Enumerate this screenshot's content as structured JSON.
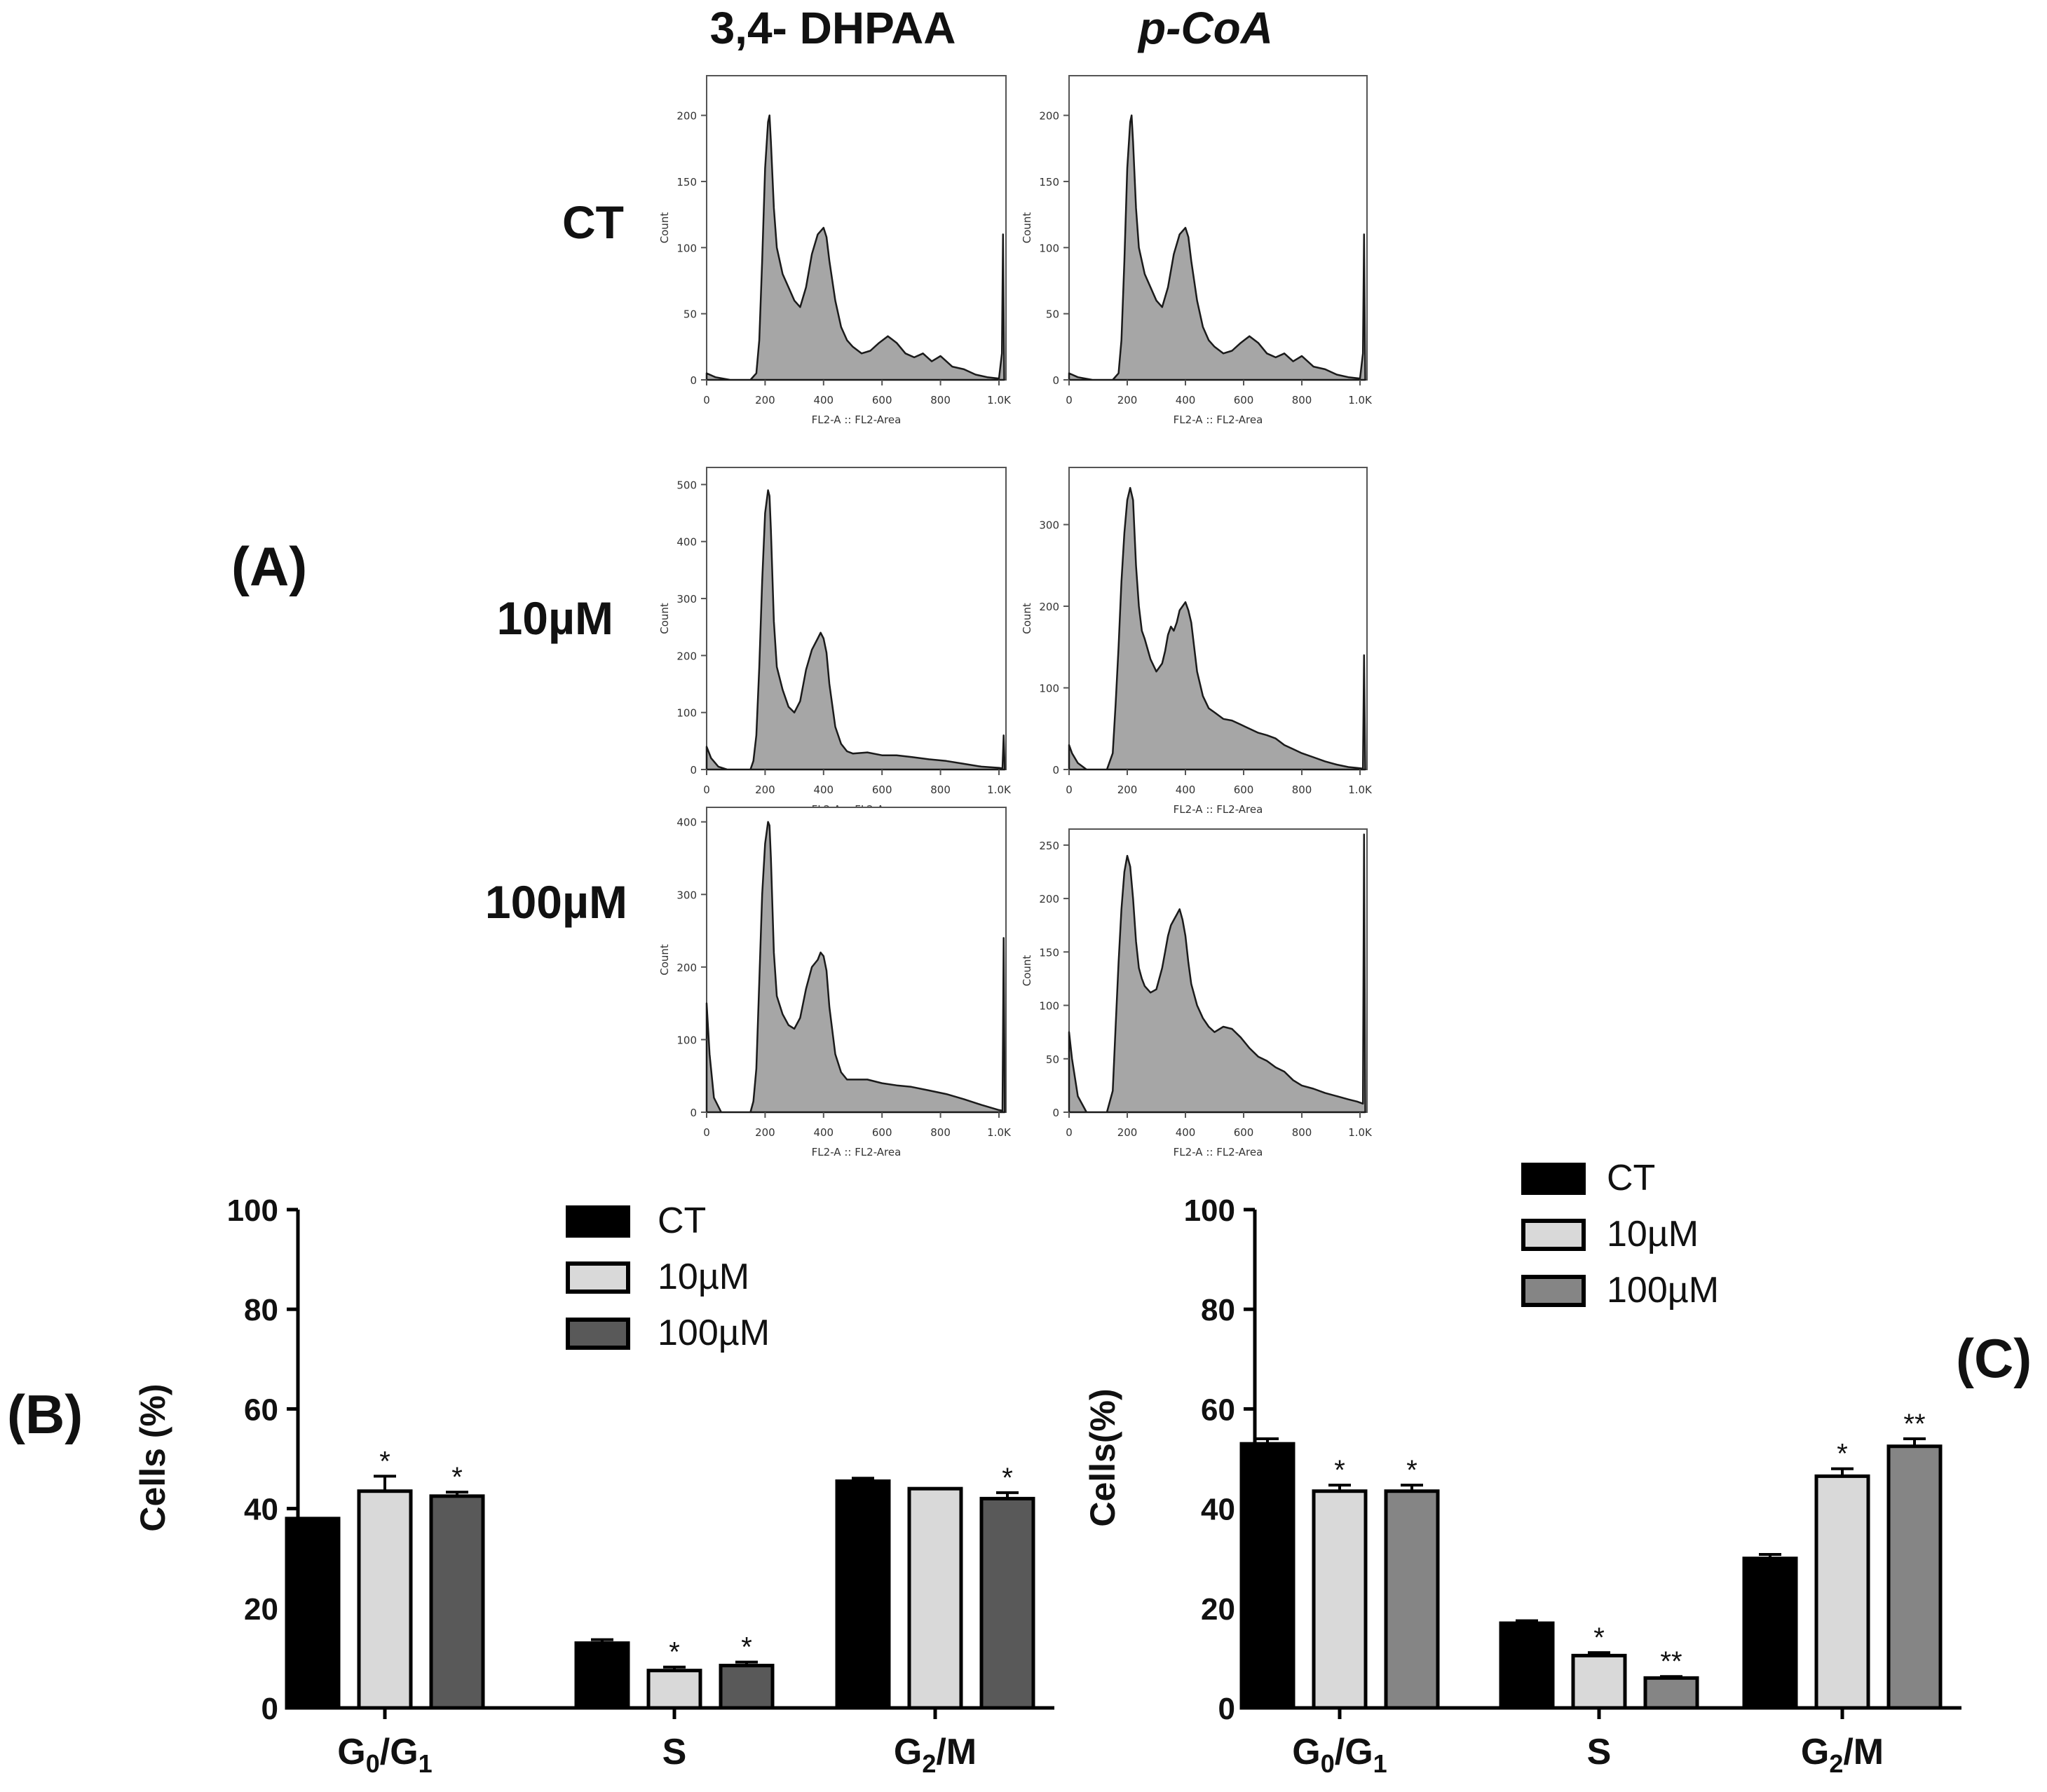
{
  "panel_a": {
    "label": "(A)",
    "col_titles": [
      "3,4- DHPAA",
      "p-CoA"
    ],
    "row_labels": [
      "CT",
      "10µM",
      "100µM"
    ],
    "x_ticks": [
      "0",
      "200",
      "400",
      "600",
      "800",
      "1.0K"
    ],
    "x_axis_label": "FL2-A :: FL2-Area",
    "y_axis_label": "Count"
  },
  "panel_b": {
    "label": "(B)"
  },
  "panel_c": {
    "label": "(C)"
  },
  "chart_data": [
    {
      "id": "A-dhpaa-ct",
      "type": "area",
      "title": "3,4- DHPAA",
      "row": "CT",
      "xlabel": "FL2-A :: FL2-Area",
      "ylabel": "Count",
      "xlim": [
        0,
        1024
      ],
      "ylim": [
        0,
        230
      ],
      "yticks": [
        0,
        50,
        100,
        150,
        200
      ],
      "x": [
        0,
        30,
        80,
        150,
        170,
        180,
        190,
        200,
        210,
        215,
        220,
        230,
        240,
        260,
        280,
        300,
        320,
        340,
        360,
        380,
        400,
        410,
        420,
        440,
        460,
        480,
        500,
        530,
        560,
        590,
        620,
        650,
        680,
        710,
        740,
        770,
        800,
        840,
        880,
        920,
        960,
        1000,
        1010,
        1014,
        1018
      ],
      "y": [
        5,
        2,
        0,
        0,
        5,
        30,
        90,
        160,
        195,
        200,
        180,
        130,
        100,
        80,
        70,
        60,
        55,
        70,
        95,
        110,
        115,
        108,
        90,
        60,
        40,
        30,
        25,
        20,
        22,
        28,
        33,
        28,
        20,
        17,
        20,
        14,
        18,
        10,
        8,
        4,
        2,
        1,
        20,
        110,
        0
      ]
    },
    {
      "id": "A-pcoa-ct",
      "type": "area",
      "title": "p-CoA",
      "row": "CT",
      "xlabel": "FL2-A :: FL2-Area",
      "ylabel": "Count",
      "xlim": [
        0,
        1024
      ],
      "ylim": [
        0,
        230
      ],
      "yticks": [
        0,
        50,
        100,
        150,
        200
      ],
      "x": [
        0,
        30,
        80,
        150,
        170,
        180,
        190,
        200,
        210,
        215,
        220,
        230,
        240,
        260,
        280,
        300,
        320,
        340,
        360,
        380,
        400,
        410,
        420,
        440,
        460,
        480,
        500,
        530,
        560,
        590,
        620,
        650,
        680,
        710,
        740,
        770,
        800,
        840,
        880,
        920,
        960,
        1000,
        1010,
        1014,
        1018
      ],
      "y": [
        5,
        2,
        0,
        0,
        5,
        30,
        90,
        160,
        195,
        200,
        180,
        130,
        100,
        80,
        70,
        60,
        55,
        70,
        95,
        110,
        115,
        108,
        90,
        60,
        40,
        30,
        25,
        20,
        22,
        28,
        33,
        28,
        20,
        17,
        20,
        14,
        18,
        10,
        8,
        4,
        2,
        1,
        20,
        110,
        0
      ]
    },
    {
      "id": "A-dhpaa-10",
      "type": "area",
      "title": "3,4- DHPAA",
      "row": "10µM",
      "xlabel": "FL2-A :: FL2-Area",
      "ylabel": "Count",
      "xlim": [
        0,
        1024
      ],
      "ylim": [
        0,
        530
      ],
      "yticks": [
        0,
        100,
        200,
        300,
        400,
        500
      ],
      "x": [
        0,
        15,
        40,
        70,
        150,
        160,
        170,
        180,
        190,
        200,
        210,
        215,
        220,
        230,
        240,
        260,
        280,
        300,
        320,
        340,
        360,
        380,
        390,
        400,
        410,
        420,
        440,
        460,
        480,
        500,
        550,
        600,
        650,
        700,
        760,
        820,
        880,
        940,
        1000,
        1012,
        1016,
        1020
      ],
      "y": [
        40,
        20,
        5,
        0,
        0,
        15,
        60,
        180,
        330,
        450,
        490,
        480,
        420,
        260,
        180,
        140,
        110,
        100,
        120,
        175,
        210,
        230,
        240,
        230,
        205,
        150,
        75,
        45,
        32,
        28,
        30,
        25,
        25,
        22,
        18,
        15,
        10,
        5,
        3,
        2,
        60,
        0
      ]
    },
    {
      "id": "A-pcoa-10",
      "type": "area",
      "title": "p-CoA",
      "row": "10µM",
      "xlabel": "FL2-A :: FL2-Area",
      "ylabel": "Count",
      "xlim": [
        0,
        1024
      ],
      "ylim": [
        0,
        370
      ],
      "yticks": [
        0,
        100,
        200,
        300
      ],
      "x": [
        0,
        10,
        30,
        60,
        130,
        150,
        160,
        170,
        180,
        190,
        200,
        210,
        220,
        230,
        240,
        250,
        260,
        280,
        300,
        320,
        330,
        340,
        350,
        360,
        370,
        380,
        390,
        400,
        410,
        420,
        440,
        460,
        480,
        500,
        530,
        560,
        590,
        620,
        650,
        680,
        710,
        740,
        770,
        800,
        840,
        880,
        920,
        960,
        990,
        1010,
        1014,
        1018
      ],
      "y": [
        30,
        20,
        8,
        0,
        0,
        20,
        80,
        150,
        230,
        290,
        330,
        345,
        330,
        250,
        200,
        170,
        160,
        135,
        120,
        130,
        145,
        165,
        175,
        170,
        180,
        195,
        200,
        205,
        195,
        180,
        120,
        90,
        75,
        70,
        62,
        60,
        55,
        50,
        45,
        42,
        38,
        30,
        25,
        20,
        15,
        10,
        6,
        3,
        2,
        1,
        140,
        0
      ]
    },
    {
      "id": "A-dhpaa-100",
      "type": "area",
      "title": "3,4- DHPAA",
      "row": "100µM",
      "xlabel": "FL2-A :: FL2-Area",
      "ylabel": "Count",
      "xlim": [
        0,
        1024
      ],
      "ylim": [
        0,
        420
      ],
      "yticks": [
        0,
        100,
        200,
        300,
        400
      ],
      "x": [
        0,
        10,
        25,
        50,
        150,
        160,
        170,
        180,
        190,
        200,
        210,
        215,
        220,
        230,
        240,
        260,
        280,
        300,
        320,
        340,
        360,
        380,
        390,
        400,
        410,
        420,
        440,
        460,
        480,
        500,
        550,
        600,
        650,
        700,
        760,
        820,
        880,
        940,
        1000,
        1012,
        1016,
        1020
      ],
      "y": [
        150,
        80,
        20,
        0,
        0,
        15,
        60,
        180,
        300,
        370,
        400,
        395,
        350,
        220,
        160,
        135,
        120,
        115,
        130,
        170,
        200,
        210,
        220,
        215,
        195,
        145,
        80,
        55,
        45,
        45,
        45,
        40,
        37,
        35,
        30,
        25,
        18,
        10,
        3,
        2,
        240,
        0
      ]
    },
    {
      "id": "A-pcoa-100",
      "type": "area",
      "title": "p-CoA",
      "row": "100µM",
      "xlabel": "FL2-A :: FL2-Area",
      "ylabel": "Count",
      "xlim": [
        0,
        1024
      ],
      "ylim": [
        0,
        265
      ],
      "yticks": [
        0,
        50,
        100,
        150,
        200,
        250
      ],
      "x": [
        0,
        10,
        30,
        60,
        130,
        150,
        160,
        170,
        180,
        190,
        200,
        210,
        220,
        230,
        240,
        250,
        260,
        280,
        300,
        320,
        330,
        340,
        350,
        360,
        370,
        380,
        390,
        400,
        410,
        420,
        440,
        460,
        480,
        500,
        530,
        560,
        590,
        620,
        650,
        680,
        710,
        740,
        770,
        800,
        840,
        880,
        920,
        960,
        990,
        1010,
        1014,
        1018
      ],
      "y": [
        75,
        50,
        15,
        0,
        0,
        20,
        80,
        140,
        190,
        225,
        240,
        230,
        200,
        160,
        135,
        125,
        118,
        112,
        115,
        135,
        150,
        165,
        175,
        180,
        185,
        190,
        180,
        165,
        140,
        120,
        100,
        88,
        80,
        75,
        80,
        78,
        70,
        60,
        52,
        48,
        42,
        38,
        30,
        25,
        22,
        18,
        15,
        12,
        10,
        8,
        260,
        0
      ]
    },
    {
      "id": "B",
      "type": "bar",
      "categories": [
        "G0/G1",
        "S",
        "G2/M"
      ],
      "series": [
        {
          "name": "CT",
          "values": [
            38,
            13,
            45.5
          ],
          "errors": [
            0,
            0.7,
            0.6
          ],
          "sig": [
            "",
            "",
            ""
          ]
        },
        {
          "name": "10µM",
          "values": [
            43.5,
            7.5,
            44
          ],
          "errors": [
            3.0,
            0.7,
            0
          ],
          "sig": [
            "*",
            "*",
            ""
          ]
        },
        {
          "name": "100µM",
          "values": [
            42.5,
            8.5,
            42
          ],
          "errors": [
            0.8,
            0.7,
            1.2
          ],
          "sig": [
            "*",
            "*",
            "*"
          ]
        }
      ],
      "title": "",
      "xlabel": "",
      "ylabel": "Cells (%)",
      "ylim": [
        0,
        100
      ],
      "yticks": [
        0,
        20,
        40,
        60,
        80,
        100
      ],
      "legend": "top-center"
    },
    {
      "id": "C",
      "type": "bar",
      "categories": [
        "G0/G1",
        "S",
        "G2/M"
      ],
      "series": [
        {
          "name": "CT",
          "values": [
            53,
            17,
            30
          ],
          "errors": [
            1.0,
            0.5,
            0.8
          ],
          "sig": [
            "",
            "",
            ""
          ]
        },
        {
          "name": "10µM",
          "values": [
            43.5,
            10.5,
            46.5
          ],
          "errors": [
            1.2,
            0.6,
            1.5
          ],
          "sig": [
            "*",
            "*",
            "*"
          ]
        },
        {
          "name": "100µM",
          "values": [
            43.5,
            6,
            52.5
          ],
          "errors": [
            1.2,
            0.3,
            1.5
          ],
          "sig": [
            "*",
            "**",
            "**"
          ]
        }
      ],
      "title": "",
      "xlabel": "",
      "ylabel": "Cells(%)",
      "ylim": [
        0,
        100
      ],
      "yticks": [
        0,
        20,
        40,
        60,
        80,
        100
      ],
      "legend": "top-center"
    }
  ]
}
